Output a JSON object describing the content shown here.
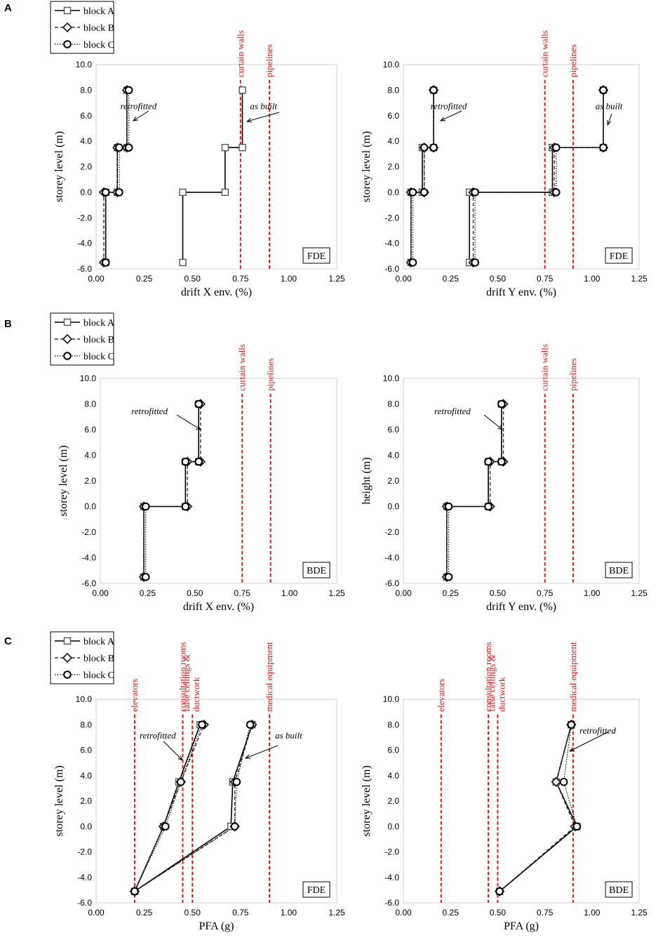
{
  "legend_entries": [
    "block A",
    "block B",
    "block C"
  ],
  "chart_data": [
    {
      "id": "A-left",
      "panel": "A",
      "type": "line",
      "xlabel": "drift X env. (%)",
      "ylabel": "storey level (m)",
      "xlim": [
        0,
        1.25
      ],
      "ylim": [
        -6,
        10
      ],
      "xticks": [
        "0.00",
        "0.25",
        "0.50",
        "0.75",
        "1.00",
        "1.25"
      ],
      "yticks": [
        "-6.0",
        "-4.0",
        "-2.0",
        "0.0",
        "2.0",
        "4.0",
        "6.0",
        "8.0",
        "10.0"
      ],
      "box_label": "FDE",
      "thresholds": [
        {
          "label": "curtain walls",
          "x": 0.75
        },
        {
          "label": "pipelines",
          "x": 0.9
        }
      ],
      "series": [
        {
          "name": "block A",
          "group": "retrofitted",
          "steps": true,
          "points": [
            [
              0.05,
              -5.5
            ],
            [
              0.05,
              0
            ],
            [
              0.11,
              0
            ],
            [
              0.11,
              3.5
            ],
            [
              0.16,
              3.5
            ],
            [
              0.16,
              8
            ]
          ]
        },
        {
          "name": "block B",
          "group": "retrofitted",
          "steps": true,
          "points": [
            [
              0.04,
              -5.5
            ],
            [
              0.04,
              0
            ],
            [
              0.11,
              0
            ],
            [
              0.11,
              3.5
            ],
            [
              0.16,
              3.5
            ],
            [
              0.16,
              8
            ]
          ]
        },
        {
          "name": "block C",
          "group": "retrofitted",
          "steps": true,
          "points": [
            [
              0.05,
              -5.5
            ],
            [
              0.05,
              0
            ],
            [
              0.12,
              0
            ],
            [
              0.12,
              3.5
            ],
            [
              0.17,
              3.5
            ],
            [
              0.17,
              8
            ]
          ]
        },
        {
          "name": "block A",
          "group": "as built",
          "steps": true,
          "points": [
            [
              0.45,
              -5.5
            ],
            [
              0.45,
              0
            ],
            [
              0.67,
              0
            ],
            [
              0.67,
              3.5
            ],
            [
              0.76,
              3.5
            ],
            [
              0.76,
              8
            ]
          ]
        }
      ],
      "annotations": [
        {
          "text": "retrofitted",
          "x": 0.22,
          "y": 6.5
        },
        {
          "text": "as built",
          "x": 0.87,
          "y": 6.5
        }
      ]
    },
    {
      "id": "A-right",
      "panel": "A",
      "type": "line",
      "xlabel": "drift Y env. (%)",
      "ylabel": "storey level (m)",
      "xlim": [
        0,
        1.25
      ],
      "ylim": [
        -6,
        10
      ],
      "xticks": [
        "0.00",
        "0.25",
        "0.50",
        "0.75",
        "1.00",
        "1.25"
      ],
      "yticks": [
        "-6.0",
        "-4.0",
        "-2.0",
        "0.0",
        "2.0",
        "4.0",
        "6.0",
        "8.0",
        "10.0"
      ],
      "box_label": "FDE",
      "thresholds": [
        {
          "label": "curtain walls",
          "x": 0.75
        },
        {
          "label": "pipelines",
          "x": 0.9
        }
      ],
      "series": [
        {
          "name": "block A",
          "group": "retrofitted",
          "steps": true,
          "points": [
            [
              0.04,
              -5.5
            ],
            [
              0.04,
              0
            ],
            [
              0.1,
              0
            ],
            [
              0.1,
              3.5
            ],
            [
              0.16,
              3.5
            ],
            [
              0.16,
              8
            ]
          ]
        },
        {
          "name": "block B",
          "group": "retrofitted",
          "steps": true,
          "points": [
            [
              0.04,
              -5.5
            ],
            [
              0.04,
              0
            ],
            [
              0.11,
              0
            ],
            [
              0.11,
              3.5
            ],
            [
              0.16,
              3.5
            ],
            [
              0.16,
              8
            ]
          ]
        },
        {
          "name": "block C",
          "group": "retrofitted",
          "steps": true,
          "points": [
            [
              0.05,
              -5.5
            ],
            [
              0.05,
              0
            ],
            [
              0.11,
              0
            ],
            [
              0.11,
              3.5
            ],
            [
              0.16,
              3.5
            ],
            [
              0.16,
              8
            ]
          ]
        },
        {
          "name": "block A",
          "group": "as built",
          "steps": true,
          "points": [
            [
              0.35,
              -5.5
            ],
            [
              0.35,
              0
            ],
            [
              0.79,
              0
            ],
            [
              0.79,
              3.5
            ],
            [
              1.06,
              3.5
            ],
            [
              1.06,
              8
            ]
          ]
        },
        {
          "name": "block B",
          "group": "as built",
          "steps": true,
          "points": [
            [
              0.37,
              -5.5
            ],
            [
              0.37,
              0
            ],
            [
              0.8,
              0
            ],
            [
              0.8,
              3.5
            ],
            [
              1.06,
              3.5
            ],
            [
              1.06,
              8
            ]
          ]
        },
        {
          "name": "block C",
          "group": "as built",
          "steps": true,
          "points": [
            [
              0.38,
              -5.5
            ],
            [
              0.38,
              0
            ],
            [
              0.81,
              0
            ],
            [
              0.81,
              3.5
            ],
            [
              1.06,
              3.5
            ],
            [
              1.06,
              8
            ]
          ]
        }
      ],
      "annotations": [
        {
          "text": "retrofitted",
          "x": 0.24,
          "y": 6.5
        },
        {
          "text": "as built",
          "x": 1.09,
          "y": 6.5
        }
      ]
    },
    {
      "id": "B-left",
      "panel": "B",
      "type": "line",
      "xlabel": "drift X env. (%)",
      "ylabel": "storey level (m)",
      "xlim": [
        0,
        1.25
      ],
      "ylim": [
        -6,
        10
      ],
      "xticks": [
        "0.00",
        "0.25",
        "0.50",
        "0.75",
        "1.00",
        "1.25"
      ],
      "yticks": [
        "-6.0",
        "-4.0",
        "-2.0",
        "0.0",
        "2.0",
        "4.0",
        "6.0",
        "8.0",
        "10.0"
      ],
      "box_label": "BDE",
      "thresholds": [
        {
          "label": "curtain walls",
          "x": 0.75
        },
        {
          "label": "pipelines",
          "x": 0.9
        }
      ],
      "series": [
        {
          "name": "block A",
          "group": "retrofitted",
          "steps": true,
          "points": [
            [
              0.23,
              -5.5
            ],
            [
              0.23,
              0
            ],
            [
              0.45,
              0
            ],
            [
              0.45,
              3.5
            ],
            [
              0.52,
              3.5
            ],
            [
              0.52,
              8
            ]
          ]
        },
        {
          "name": "block B",
          "group": "retrofitted",
          "steps": true,
          "points": [
            [
              0.23,
              -5.5
            ],
            [
              0.23,
              0
            ],
            [
              0.46,
              0
            ],
            [
              0.46,
              3.5
            ],
            [
              0.53,
              3.5
            ],
            [
              0.53,
              8
            ]
          ]
        },
        {
          "name": "block C",
          "group": "retrofitted",
          "steps": true,
          "points": [
            [
              0.24,
              -5.5
            ],
            [
              0.24,
              0
            ],
            [
              0.45,
              0
            ],
            [
              0.45,
              3.5
            ],
            [
              0.52,
              3.5
            ],
            [
              0.52,
              8
            ]
          ]
        }
      ],
      "annotations": [
        {
          "text": "retrofitted",
          "x": 0.26,
          "y": 7.2
        }
      ]
    },
    {
      "id": "B-right",
      "panel": "B",
      "type": "line",
      "xlabel": "drift Y env. (%)",
      "ylabel": "height (m)",
      "xlim": [
        0,
        1.25
      ],
      "ylim": [
        -6,
        10
      ],
      "xticks": [
        "0.00",
        "0.25",
        "0.50",
        "0.75",
        "1.00",
        "1.25"
      ],
      "yticks": [
        "-6.0",
        "-4.0",
        "-2.0",
        "0.0",
        "2.0",
        "4.0",
        "6.0",
        "8.0",
        "10.0"
      ],
      "box_label": "BDE",
      "thresholds": [
        {
          "label": "curtain walls",
          "x": 0.75
        },
        {
          "label": "pipelines",
          "x": 0.9
        }
      ],
      "series": [
        {
          "name": "block A",
          "group": "retrofitted",
          "steps": true,
          "points": [
            [
              0.23,
              -5.5
            ],
            [
              0.23,
              0
            ],
            [
              0.45,
              0
            ],
            [
              0.45,
              3.5
            ],
            [
              0.52,
              3.5
            ],
            [
              0.52,
              8
            ]
          ]
        },
        {
          "name": "block B",
          "group": "retrofitted",
          "steps": true,
          "points": [
            [
              0.23,
              -5.5
            ],
            [
              0.23,
              0
            ],
            [
              0.46,
              0
            ],
            [
              0.46,
              3.5
            ],
            [
              0.53,
              3.5
            ],
            [
              0.53,
              8
            ]
          ]
        },
        {
          "name": "block C",
          "group": "retrofitted",
          "steps": true,
          "points": [
            [
              0.24,
              -5.5
            ],
            [
              0.24,
              0
            ],
            [
              0.45,
              0
            ],
            [
              0.45,
              3.5
            ],
            [
              0.52,
              3.5
            ],
            [
              0.52,
              8
            ]
          ]
        }
      ],
      "annotations": [
        {
          "text": "retrofitted",
          "x": 0.26,
          "y": 7.2
        }
      ]
    },
    {
      "id": "C-left",
      "panel": "C",
      "type": "line",
      "xlabel": "PFA (g)",
      "ylabel": "storey level (m)",
      "xlim": [
        0,
        1.25
      ],
      "ylim": [
        -6,
        10
      ],
      "xticks": [
        "0.00",
        "0.25",
        "0.50",
        "0.75",
        "1.00",
        "1.25"
      ],
      "yticks": [
        "-6.0",
        "-4.0",
        "-2.0",
        "0.0",
        "2.0",
        "4.0",
        "6.0",
        "8.0",
        "10.0"
      ],
      "box_label": "FDE",
      "thresholds": [
        {
          "label": "elevators",
          "x": 0.2
        },
        {
          "label": "consultation rooms",
          "x": 0.45
        },
        {
          "label": "false ceilings & ductwork",
          "x": 0.5
        },
        {
          "label": "medical equipment",
          "x": 0.9
        }
      ],
      "series": [
        {
          "name": "block A",
          "group": "retrofitted",
          "steps": false,
          "points": [
            [
              0.2,
              -5.1
            ],
            [
              0.35,
              0
            ],
            [
              0.43,
              3.5
            ],
            [
              0.54,
              8
            ]
          ]
        },
        {
          "name": "block B",
          "group": "retrofitted",
          "steps": false,
          "points": [
            [
              0.2,
              -5.1
            ],
            [
              0.35,
              0
            ],
            [
              0.44,
              3.5
            ],
            [
              0.56,
              8
            ]
          ]
        },
        {
          "name": "block C",
          "group": "retrofitted",
          "steps": false,
          "points": [
            [
              0.2,
              -5.1
            ],
            [
              0.36,
              0
            ],
            [
              0.44,
              3.5
            ],
            [
              0.55,
              8
            ]
          ]
        },
        {
          "name": "block A",
          "group": "as built",
          "steps": false,
          "points": [
            [
              0.2,
              -5.1
            ],
            [
              0.7,
              0
            ],
            [
              0.71,
              3.5
            ],
            [
              0.81,
              8
            ]
          ]
        },
        {
          "name": "block B",
          "group": "as built",
          "steps": false,
          "points": [
            [
              0.2,
              -5.1
            ],
            [
              0.72,
              0
            ],
            [
              0.72,
              3.5
            ],
            [
              0.81,
              8
            ]
          ]
        },
        {
          "name": "block C",
          "group": "as built",
          "steps": false,
          "points": [
            [
              0.2,
              -5.1
            ],
            [
              0.72,
              0
            ],
            [
              0.73,
              3.5
            ],
            [
              0.8,
              8
            ]
          ]
        }
      ],
      "annotations": [
        {
          "text": "retrofitted",
          "x": 0.32,
          "y": 6.9
        },
        {
          "text": "as built",
          "x": 1.0,
          "y": 6.9
        }
      ]
    },
    {
      "id": "C-right",
      "panel": "C",
      "type": "line",
      "xlabel": "PFA (g)",
      "ylabel": "storey level (m)",
      "xlim": [
        0,
        1.25
      ],
      "ylim": [
        -6,
        10
      ],
      "xticks": [
        "0.00",
        "0.25",
        "0.50",
        "0.75",
        "1.00",
        "1.25"
      ],
      "yticks": [
        "-6.0",
        "-4.0",
        "-2.0",
        "0.0",
        "2.0",
        "4.0",
        "6.0",
        "8.0",
        "10.0"
      ],
      "box_label": "BDE",
      "thresholds": [
        {
          "label": "elevators",
          "x": 0.2
        },
        {
          "label": "consultation rooms",
          "x": 0.45
        },
        {
          "label": "false ceilings & ductwork",
          "x": 0.5
        },
        {
          "label": "medical equipment",
          "x": 0.9
        }
      ],
      "series": [
        {
          "name": "block A",
          "group": "retrofitted",
          "steps": false,
          "points": [
            [
              0.51,
              -5.1
            ],
            [
              0.92,
              0
            ],
            [
              0.81,
              3.5
            ],
            [
              0.89,
              8
            ]
          ]
        },
        {
          "name": "block B",
          "group": "retrofitted",
          "steps": false,
          "points": [
            [
              0.51,
              -5.1
            ],
            [
              0.91,
              0
            ],
            [
              0.81,
              3.5
            ],
            [
              0.89,
              8
            ]
          ]
        },
        {
          "name": "block C",
          "group": "retrofitted",
          "steps": false,
          "points": [
            [
              0.51,
              -5.1
            ],
            [
              0.92,
              0
            ],
            [
              0.85,
              3.5
            ],
            [
              0.89,
              8
            ]
          ]
        }
      ],
      "annotations": [
        {
          "text": "retrofitted",
          "x": 1.03,
          "y": 7.3
        }
      ]
    }
  ],
  "panels": [
    "A",
    "B",
    "C"
  ]
}
